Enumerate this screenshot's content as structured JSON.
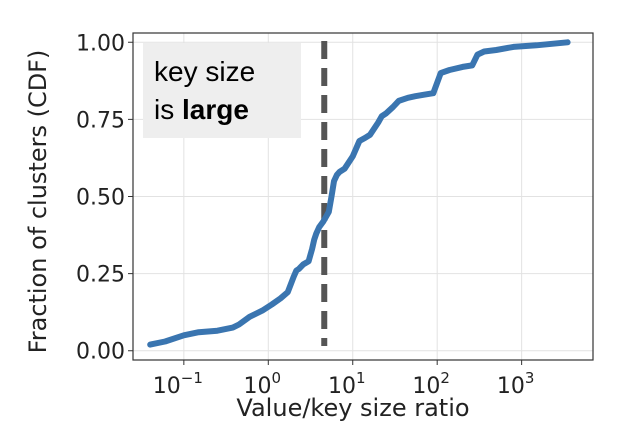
{
  "chart_data": {
    "type": "line",
    "title": "",
    "xlabel": "Value/key size ratio",
    "ylabel": "Fraction of clusters (CDF)",
    "xscale": "log",
    "xlim": [
      0.025,
      7000
    ],
    "ylim": [
      -0.03,
      1.03
    ],
    "grid": true,
    "xticks": [
      {
        "base": "10",
        "exp": "−1",
        "value": 0.1
      },
      {
        "base": "10",
        "exp": "0",
        "value": 1
      },
      {
        "base": "10",
        "exp": "1",
        "value": 10
      },
      {
        "base": "10",
        "exp": "2",
        "value": 100
      },
      {
        "base": "10",
        "exp": "3",
        "value": 1000
      }
    ],
    "yticks": [
      {
        "label": "0.00",
        "value": 0.0
      },
      {
        "label": "0.25",
        "value": 0.25
      },
      {
        "label": "0.50",
        "value": 0.5
      },
      {
        "label": "0.75",
        "value": 0.75
      },
      {
        "label": "1.00",
        "value": 1.0
      }
    ],
    "series": [
      {
        "color": "#3a75b0",
        "x": [
          0.04,
          0.06,
          0.1,
          0.15,
          0.25,
          0.38,
          0.45,
          0.6,
          0.85,
          1.1,
          1.4,
          1.7,
          2.0,
          2.15,
          2.3,
          2.6,
          3.0,
          3.3,
          3.5,
          3.7,
          4.0,
          4.5,
          5.2,
          5.6,
          6.0,
          6.5,
          7.0,
          8.0,
          10.0,
          12.0,
          14.0,
          16.0,
          20.0,
          22.0,
          25.0,
          30.0,
          35.0,
          45.0,
          55.0,
          70.0,
          90.0,
          110.0,
          140.0,
          200.0,
          260.0,
          300.0,
          360.0,
          500.0,
          800.0,
          1500.0,
          3500.0
        ],
        "y": [
          0.02,
          0.03,
          0.05,
          0.06,
          0.065,
          0.075,
          0.085,
          0.11,
          0.13,
          0.15,
          0.17,
          0.19,
          0.24,
          0.26,
          0.265,
          0.28,
          0.29,
          0.33,
          0.36,
          0.38,
          0.4,
          0.42,
          0.45,
          0.5,
          0.55,
          0.57,
          0.58,
          0.59,
          0.63,
          0.68,
          0.69,
          0.7,
          0.74,
          0.76,
          0.77,
          0.79,
          0.81,
          0.82,
          0.825,
          0.83,
          0.835,
          0.9,
          0.91,
          0.92,
          0.925,
          0.96,
          0.97,
          0.975,
          0.985,
          0.99,
          1.0
        ]
      }
    ],
    "vline": {
      "x": 4.6,
      "color": "#555555",
      "style": "dashed"
    },
    "annotation": {
      "line1": "key size",
      "line2_prefix": "is ",
      "line2_bold": "large",
      "placement": "top-left",
      "background": "#eeeeee"
    }
  }
}
